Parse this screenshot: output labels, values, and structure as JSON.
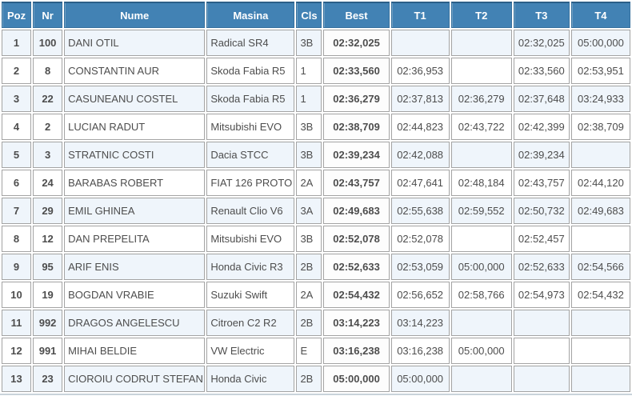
{
  "table": {
    "columns": [
      {
        "key": "poz",
        "label": "Poz"
      },
      {
        "key": "nr",
        "label": "Nr"
      },
      {
        "key": "nume",
        "label": "Nume"
      },
      {
        "key": "masina",
        "label": "Masina"
      },
      {
        "key": "cls",
        "label": "Cls"
      },
      {
        "key": "best",
        "label": "Best"
      },
      {
        "key": "t1",
        "label": "T1"
      },
      {
        "key": "t2",
        "label": "T2"
      },
      {
        "key": "t3",
        "label": "T3"
      },
      {
        "key": "t4",
        "label": "T4"
      }
    ],
    "rows": [
      {
        "poz": "1",
        "nr": "100",
        "nume": "DANI OTIL",
        "masina": "Radical SR4",
        "cls": "3B",
        "best": "02:32,025",
        "t1": "",
        "t2": "",
        "t3": "02:32,025",
        "t4": "05:00,000"
      },
      {
        "poz": "2",
        "nr": "8",
        "nume": "CONSTANTIN AUR",
        "masina": "Skoda Fabia R5",
        "cls": "1",
        "best": "02:33,560",
        "t1": "02:36,953",
        "t2": "",
        "t3": "02:33,560",
        "t4": "02:53,951"
      },
      {
        "poz": "3",
        "nr": "22",
        "nume": "CASUNEANU COSTEL",
        "masina": "Skoda Fabia R5",
        "cls": "1",
        "best": "02:36,279",
        "t1": "02:37,813",
        "t2": "02:36,279",
        "t3": "02:37,648",
        "t4": "03:24,933"
      },
      {
        "poz": "4",
        "nr": "2",
        "nume": "LUCIAN RADUT",
        "masina": "Mitsubishi EVO",
        "cls": "3B",
        "best": "02:38,709",
        "t1": "02:44,823",
        "t2": "02:43,722",
        "t3": "02:42,399",
        "t4": "02:38,709"
      },
      {
        "poz": "5",
        "nr": "3",
        "nume": "STRATNIC COSTI",
        "masina": "Dacia STCC",
        "cls": "3B",
        "best": "02:39,234",
        "t1": "02:42,088",
        "t2": "",
        "t3": "02:39,234",
        "t4": ""
      },
      {
        "poz": "6",
        "nr": "24",
        "nume": "BARABAS ROBERT",
        "masina": "FIAT 126 PROTO",
        "cls": "2A",
        "best": "02:43,757",
        "t1": "02:47,641",
        "t2": "02:48,184",
        "t3": "02:43,757",
        "t4": "02:44,120"
      },
      {
        "poz": "7",
        "nr": "29",
        "nume": "EMIL GHINEA",
        "masina": "Renault Clio V6",
        "cls": "3A",
        "best": "02:49,683",
        "t1": "02:55,638",
        "t2": "02:59,552",
        "t3": "02:50,732",
        "t4": "02:49,683"
      },
      {
        "poz": "8",
        "nr": "12",
        "nume": "DAN PREPELITA",
        "masina": "Mitsubishi EVO",
        "cls": "3B",
        "best": "02:52,078",
        "t1": "02:52,078",
        "t2": "",
        "t3": "02:52,457",
        "t4": ""
      },
      {
        "poz": "9",
        "nr": "95",
        "nume": "ARIF ENIS",
        "masina": "Honda Civic R3",
        "cls": "2B",
        "best": "02:52,633",
        "t1": "02:53,059",
        "t2": "05:00,000",
        "t3": "02:52,633",
        "t4": "02:54,566"
      },
      {
        "poz": "10",
        "nr": "19",
        "nume": "BOGDAN VRABIE",
        "masina": "Suzuki Swift",
        "cls": "2A",
        "best": "02:54,432",
        "t1": "02:56,652",
        "t2": "02:58,766",
        "t3": "02:54,973",
        "t4": "02:54,432"
      },
      {
        "poz": "11",
        "nr": "992",
        "nume": "DRAGOS ANGELESCU",
        "masina": "Citroen C2 R2",
        "cls": "2B",
        "best": "03:14,223",
        "t1": "03:14,223",
        "t2": "",
        "t3": "",
        "t4": ""
      },
      {
        "poz": "12",
        "nr": "991",
        "nume": "MIHAI BELDIE",
        "masina": "VW Electric",
        "cls": "E",
        "best": "03:16,238",
        "t1": "03:16,238",
        "t2": "05:00,000",
        "t3": "",
        "t4": ""
      },
      {
        "poz": "13",
        "nr": "23",
        "nume": "CIOROIU CODRUT STEFAN",
        "masina": "Honda Civic",
        "cls": "2B",
        "best": "05:00,000",
        "t1": "05:00,000",
        "t2": "",
        "t3": "",
        "t4": ""
      }
    ]
  },
  "colors": {
    "header_background": "#4282b4",
    "header_text": "#ffffff",
    "row_stripe": "#eff5fb",
    "row_plain": "#ffffff",
    "cell_border": "#a3a3a3",
    "best_text": "#111111",
    "time_text": "#4d4d4d"
  }
}
